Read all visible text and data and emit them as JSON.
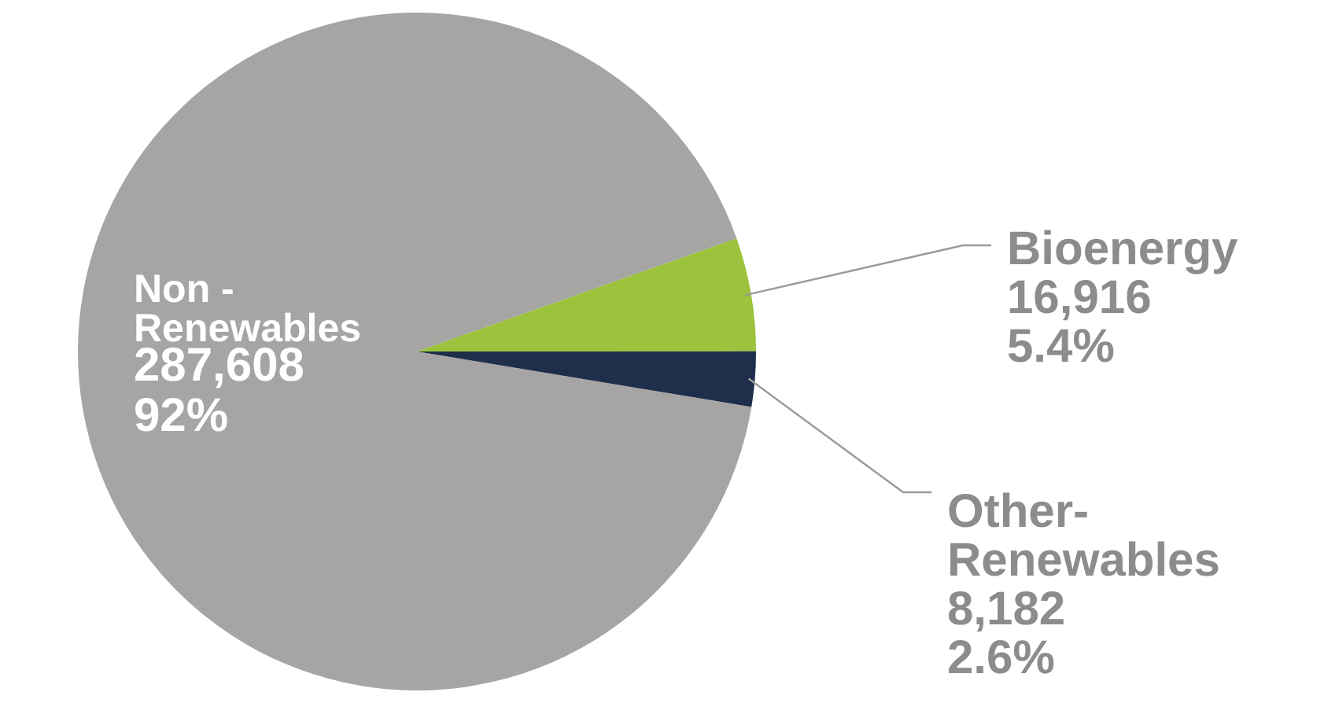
{
  "chart_data": {
    "type": "pie",
    "categories": [
      "Non - Renewables",
      "Bioenergy",
      "Other-Renewables"
    ],
    "values": [
      287608,
      16916,
      8182
    ],
    "colors": [
      "#a6a5a3",
      "#9bc33b",
      "#1f2e4b"
    ],
    "value_labels": [
      "287,608\n92%",
      "16,916\n5.4%",
      "8,182\n2.6%"
    ]
  }
}
